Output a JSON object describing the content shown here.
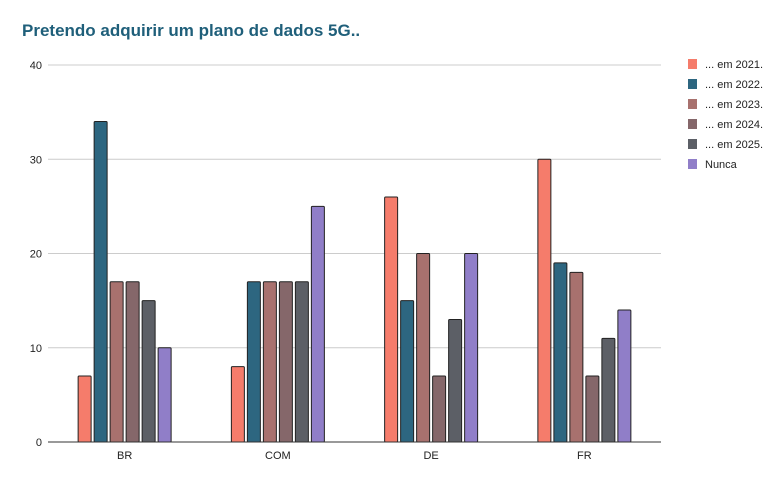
{
  "chart_data": {
    "type": "bar",
    "title": "Pretendo adquirir um plano de dados 5G..",
    "xlabel": "",
    "ylabel": "",
    "categories": [
      "BR",
      "COM",
      "DE",
      "FR"
    ],
    "ylim": [
      0,
      40
    ],
    "yticks": [
      0,
      10,
      20,
      30,
      40
    ],
    "grid": true,
    "legend_position": "right",
    "series": [
      {
        "name": "... em 2021.",
        "color": "#f57c6b",
        "values": [
          7,
          8,
          26,
          30
        ]
      },
      {
        "name": "... em 2022.",
        "color": "#2d6680",
        "values": [
          34,
          17,
          15,
          19
        ]
      },
      {
        "name": "... em 2023.",
        "color": "#a8716e",
        "values": [
          17,
          17,
          20,
          18
        ]
      },
      {
        "name": "... em 2024.",
        "color": "#85676a",
        "values": [
          17,
          17,
          7,
          7
        ]
      },
      {
        "name": "... em 2025.",
        "color": "#5c5f66",
        "values": [
          15,
          17,
          13,
          11
        ]
      },
      {
        "name": "Nunca",
        "color": "#907ec8",
        "values": [
          10,
          25,
          20,
          14
        ]
      }
    ]
  }
}
